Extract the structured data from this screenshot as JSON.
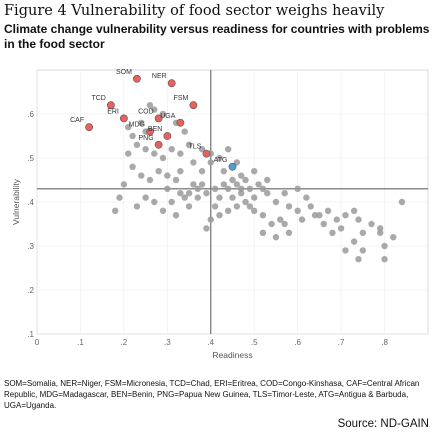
{
  "title": "Figure 4 Vulnerability of food sector weighs heavily",
  "subtitle": "Climate change vulnerability versus readiness for countries with problems in the food sector",
  "notes": "SOM=Somalia, NER=Niger, FSM=Micronesia, TCD=Chad, ERI=Eritrea, COD=Congo-Kinshasa, CAF=Central African Republic, MDG=Madagascar, BEN=Benin, PNG=Papua New Guinea, TLS=Timor-Leste, ATG=Antigua & Barbuda, UGA=Uganda.",
  "source": "Source: ND-GAIN",
  "chart_data": {
    "type": "scatter",
    "xlabel": "Readiness",
    "ylabel": "Vulnerability",
    "xlim": [
      0,
      0.9
    ],
    "ylim": [
      0.1,
      0.7
    ],
    "x_ticks": [
      "0",
      ".1",
      ".2",
      ".3",
      ".4",
      ".5",
      ".6",
      ".7",
      ".8"
    ],
    "y_ticks": [
      ".1",
      ".2",
      ".3",
      ".4",
      ".5",
      ".6"
    ],
    "reference_lines": {
      "x": 0.4,
      "y": 0.43
    },
    "colors": {
      "highlight": "#e8615d",
      "special": "#4aa3c8",
      "other": "#9a9a9a",
      "reference": "#666666"
    },
    "series": [
      {
        "group": "highlighted",
        "points": [
          {
            "label": "SOM",
            "x": 0.23,
            "y": 0.68
          },
          {
            "label": "NER",
            "x": 0.31,
            "y": 0.67
          },
          {
            "label": "FSM",
            "x": 0.36,
            "y": 0.62
          },
          {
            "label": "TCD",
            "x": 0.17,
            "y": 0.62
          },
          {
            "label": "ERI",
            "x": 0.2,
            "y": 0.59
          },
          {
            "label": "COD",
            "x": 0.28,
            "y": 0.59
          },
          {
            "label": "CAF",
            "x": 0.12,
            "y": 0.57
          },
          {
            "label": "MDG",
            "x": 0.26,
            "y": 0.56
          },
          {
            "label": "UGA",
            "x": 0.33,
            "y": 0.58
          },
          {
            "label": "BEN",
            "x": 0.3,
            "y": 0.55
          },
          {
            "label": "PNG",
            "x": 0.28,
            "y": 0.53
          },
          {
            "label": "TLS",
            "x": 0.39,
            "y": 0.51
          }
        ]
      },
      {
        "group": "special",
        "points": [
          {
            "label": "ATG",
            "x": 0.45,
            "y": 0.48
          }
        ]
      },
      {
        "group": "other",
        "points": [
          [
            0.21,
            0.57
          ],
          [
            0.25,
            0.56
          ],
          [
            0.26,
            0.62
          ],
          [
            0.27,
            0.61
          ],
          [
            0.29,
            0.6
          ],
          [
            0.24,
            0.58
          ],
          [
            0.22,
            0.55
          ],
          [
            0.32,
            0.58
          ],
          [
            0.34,
            0.56
          ],
          [
            0.23,
            0.53
          ],
          [
            0.25,
            0.52
          ],
          [
            0.27,
            0.51
          ],
          [
            0.29,
            0.5
          ],
          [
            0.21,
            0.51
          ],
          [
            0.31,
            0.52
          ],
          [
            0.33,
            0.51
          ],
          [
            0.35,
            0.53
          ],
          [
            0.36,
            0.49
          ],
          [
            0.4,
            0.49
          ],
          [
            0.38,
            0.47
          ],
          [
            0.42,
            0.5
          ],
          [
            0.43,
            0.47
          ],
          [
            0.44,
            0.52
          ],
          [
            0.46,
            0.49
          ],
          [
            0.47,
            0.46
          ],
          [
            0.5,
            0.47
          ],
          [
            0.22,
            0.48
          ],
          [
            0.24,
            0.46
          ],
          [
            0.26,
            0.45
          ],
          [
            0.28,
            0.47
          ],
          [
            0.3,
            0.46
          ],
          [
            0.32,
            0.45
          ],
          [
            0.33,
            0.47
          ],
          [
            0.36,
            0.44
          ],
          [
            0.38,
            0.44
          ],
          [
            0.39,
            0.42
          ],
          [
            0.41,
            0.43
          ],
          [
            0.42,
            0.41
          ],
          [
            0.44,
            0.43
          ],
          [
            0.45,
            0.41
          ],
          [
            0.47,
            0.43
          ],
          [
            0.49,
            0.43
          ],
          [
            0.5,
            0.41
          ],
          [
            0.52,
            0.43
          ],
          [
            0.53,
            0.42
          ],
          [
            0.55,
            0.4
          ],
          [
            0.57,
            0.42
          ],
          [
            0.58,
            0.39
          ],
          [
            0.6,
            0.43
          ],
          [
            0.62,
            0.41
          ],
          [
            0.63,
            0.39
          ],
          [
            0.65,
            0.37
          ],
          [
            0.67,
            0.38
          ],
          [
            0.69,
            0.36
          ],
          [
            0.7,
            0.34
          ],
          [
            0.71,
            0.37
          ],
          [
            0.73,
            0.38
          ],
          [
            0.74,
            0.36
          ],
          [
            0.75,
            0.33
          ],
          [
            0.77,
            0.35
          ],
          [
            0.79,
            0.34
          ],
          [
            0.8,
            0.3
          ],
          [
            0.82,
            0.32
          ],
          [
            0.84,
            0.4
          ],
          [
            0.71,
            0.29
          ],
          [
            0.73,
            0.31
          ],
          [
            0.75,
            0.29
          ],
          [
            0.74,
            0.27
          ],
          [
            0.8,
            0.27
          ],
          [
            0.79,
            0.33
          ],
          [
            0.68,
            0.33
          ],
          [
            0.66,
            0.35
          ],
          [
            0.64,
            0.37
          ],
          [
            0.56,
            0.36
          ],
          [
            0.54,
            0.35
          ],
          [
            0.52,
            0.37
          ],
          [
            0.5,
            0.38
          ],
          [
            0.48,
            0.4
          ],
          [
            0.46,
            0.39
          ],
          [
            0.44,
            0.38
          ],
          [
            0.42,
            0.37
          ],
          [
            0.41,
            0.39
          ],
          [
            0.4,
            0.36
          ],
          [
            0.39,
            0.34
          ],
          [
            0.52,
            0.33
          ],
          [
            0.55,
            0.32
          ],
          [
            0.57,
            0.35
          ],
          [
            0.6,
            0.38
          ],
          [
            0.61,
            0.36
          ],
          [
            0.58,
            0.33
          ],
          [
            0.35,
            0.39
          ],
          [
            0.33,
            0.42
          ],
          [
            0.31,
            0.4
          ],
          [
            0.29,
            0.38
          ],
          [
            0.27,
            0.4
          ],
          [
            0.25,
            0.41
          ],
          [
            0.23,
            0.39
          ],
          [
            0.2,
            0.44
          ],
          [
            0.19,
            0.41
          ],
          [
            0.18,
            0.38
          ],
          [
            0.37,
            0.43
          ],
          [
            0.34,
            0.41
          ],
          [
            0.32,
            0.37
          ],
          [
            0.38,
            0.52
          ],
          [
            0.4,
            0.51
          ],
          [
            0.45,
            0.45
          ],
          [
            0.46,
            0.44
          ],
          [
            0.48,
            0.45
          ],
          [
            0.51,
            0.44
          ],
          [
            0.53,
            0.45
          ],
          [
            0.35,
            0.42
          ],
          [
            0.3,
            0.43
          ],
          [
            0.37,
            0.41
          ],
          [
            0.43,
            0.44
          ],
          [
            0.49,
            0.39
          ],
          [
            0.47,
            0.42
          ]
        ]
      }
    ]
  }
}
